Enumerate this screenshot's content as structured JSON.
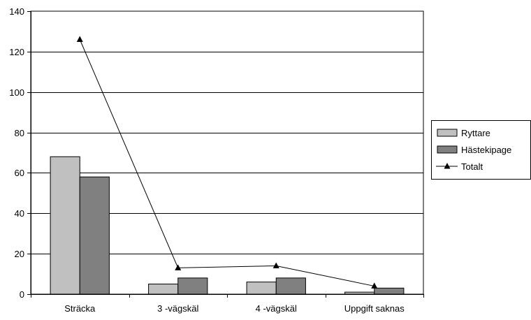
{
  "chart_data": {
    "type": "bar",
    "categories": [
      "Sträcka",
      "3 -vägskäl",
      "4 -vägskäl",
      "Uppgift saknas"
    ],
    "series": [
      {
        "name": "Ryttare",
        "type": "bar",
        "values": [
          68,
          5,
          6,
          1
        ],
        "color": "#c0c0c0"
      },
      {
        "name": "Hästekipage",
        "type": "bar",
        "values": [
          58,
          8,
          8,
          3
        ],
        "color": "#808080"
      },
      {
        "name": "Totalt",
        "type": "line",
        "marker": "triangle",
        "values": [
          126,
          13,
          14,
          4
        ],
        "color": "#000000"
      }
    ],
    "ylim": [
      0,
      140
    ],
    "yticks": [
      0,
      20,
      40,
      60,
      80,
      100,
      120,
      140
    ],
    "grid": true,
    "legend": "right"
  }
}
